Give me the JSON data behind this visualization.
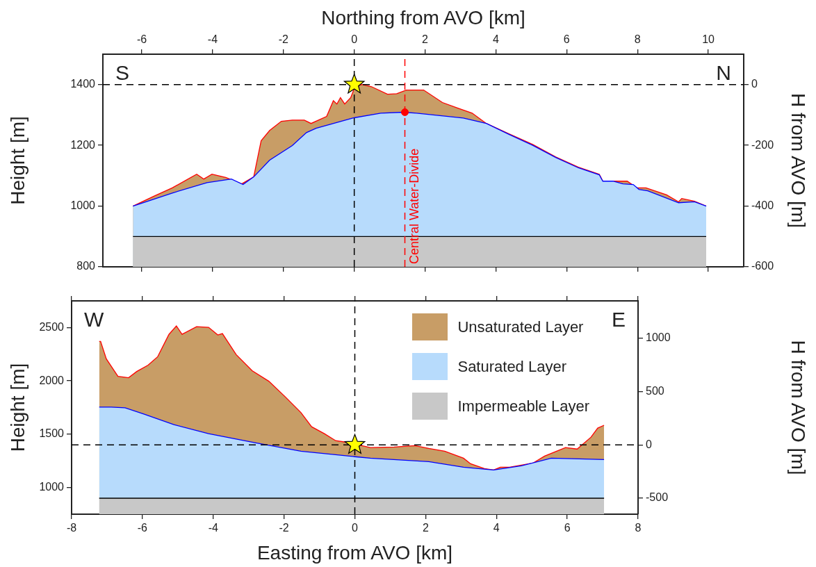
{
  "chart_data": [
    {
      "type": "area",
      "x2label": "Northing from AVO [km]",
      "ylabel": "Height [m]",
      "y2label": "H from AVO [m]",
      "xlim": [
        -7.1,
        11
      ],
      "xticks": [
        -6,
        -4,
        -2,
        0,
        2,
        4,
        6,
        8,
        10
      ],
      "x2lim": [
        -7.1,
        11
      ],
      "x2ticks": [
        -6,
        -4,
        -2,
        0,
        2,
        4,
        6,
        8,
        10
      ],
      "ylim": [
        800,
        1500
      ],
      "yticks": [
        800,
        1000,
        1200,
        1400
      ],
      "y2lim": [
        -600,
        100
      ],
      "y2ticks": [
        -600,
        -400,
        -200,
        0
      ],
      "tick_labels": "y",
      "legend": false,
      "annotations": [
        "S",
        "N"
      ],
      "ref_lines": [
        {
          "axis": "y",
          "value": 1400,
          "color": "#000000",
          "line_style": "dashed"
        },
        {
          "axis": "x",
          "value": 0,
          "color": "#000000",
          "line_style": "dashed"
        },
        {
          "axis": "x",
          "value": 1.43,
          "label": "Central Water-Divide",
          "color": "#ff0000",
          "line_style": "dashed"
        }
      ],
      "series": [
        {
          "color": "#c89d66",
          "x": [
            -6.25,
            -5.67,
            -5.14,
            -4.45,
            -4.25,
            -4.02,
            -3.63,
            -3.18,
            -2.84,
            -2.63,
            -2.39,
            -2.06,
            -1.75,
            -1.41,
            -1.22,
            -0.78,
            -0.59,
            -0.49,
            -0.39,
            -0.27,
            -0.1,
            0.02,
            0.22,
            0.49,
            0.94,
            1.2,
            1.47,
            1.96,
            2.49,
            2.94,
            3.33,
            3.73,
            4.37,
            5.04,
            5.69,
            6.33,
            6.92,
            7.02,
            7.31,
            7.59,
            7.71,
            7.98,
            8.24,
            8.82,
            9.16,
            9.25,
            9.61,
            9.94
          ],
          "values": [
            1000,
            1032,
            1060,
            1105,
            1089,
            1105,
            1094,
            1073,
            1096,
            1215,
            1249,
            1279,
            1283,
            1283,
            1272,
            1295,
            1347,
            1336,
            1357,
            1336,
            1357,
            1393,
            1400,
            1393,
            1368,
            1370,
            1382,
            1382,
            1341,
            1322,
            1306,
            1272,
            1238,
            1203,
            1162,
            1128,
            1105,
            1082,
            1082,
            1082,
            1082,
            1060,
            1060,
            1037,
            1014,
            1025,
            1016,
            1000
          ]
        },
        {
          "color": "#b7dbfc",
          "x": [
            -6.25,
            -5.14,
            -4.16,
            -3.47,
            -3.14,
            -2.84,
            -2.39,
            -1.75,
            -1.35,
            -1.08,
            -0.04,
            0.75,
            1.39,
            1.76,
            3.08,
            3.73,
            4.37,
            5.04,
            5.69,
            6.33,
            6.92,
            7.02,
            7.31,
            7.59,
            7.88,
            8.04,
            8.29,
            9.16,
            9.61,
            9.94
          ],
          "values": [
            1000,
            1043,
            1077,
            1089,
            1071,
            1096,
            1151,
            1199,
            1242,
            1256,
            1290,
            1306,
            1309,
            1306,
            1290,
            1272,
            1236,
            1200,
            1160,
            1126,
            1103,
            1082,
            1082,
            1073,
            1071,
            1055,
            1050,
            1011,
            1014,
            1000
          ]
        },
        {
          "color": "#c8c8c8",
          "x": [
            -6.25,
            9.94
          ],
          "values": [
            900,
            900
          ]
        },
        {
          "type": "scatter",
          "color": "#ffff00",
          "marker": "star",
          "x": [
            0
          ],
          "values": [
            1400
          ]
        },
        {
          "type": "scatter",
          "color": "#ff0000",
          "marker": "circle",
          "x": [
            1.43
          ],
          "values": [
            1309
          ]
        }
      ]
    },
    {
      "type": "area",
      "xlabel": "Easting from AVO [km]",
      "ylabel": "Height [m]",
      "y2label": "H from AVO [m]",
      "xlim": [
        -8,
        8
      ],
      "xticks": [
        -8,
        -6,
        -4,
        -2,
        0,
        2,
        4,
        6,
        8
      ],
      "ylim": [
        750,
        2750
      ],
      "yticks": [
        1000,
        1500,
        2000,
        2500
      ],
      "y2lim": [
        -650,
        1350
      ],
      "y2ticks": [
        -500,
        0,
        500,
        1000
      ],
      "legend": "top right",
      "annotations": [
        "W",
        "E"
      ],
      "ref_lines": [
        {
          "axis": "y",
          "value": 1400,
          "color": "#000000",
          "line_style": "dashed"
        },
        {
          "axis": "x",
          "value": 0,
          "color": "#000000",
          "line_style": "dashed"
        }
      ],
      "series": [
        {
          "name": "Unsaturated Layer",
          "color": "#c89d66",
          "x": [
            -7.22,
            -7.18,
            -7.02,
            -6.69,
            -6.39,
            -6.16,
            -5.84,
            -5.57,
            -5.25,
            -5.04,
            -4.88,
            -4.47,
            -4.13,
            -3.87,
            -3.74,
            -3.35,
            -2.9,
            -2.43,
            -1.97,
            -1.52,
            -1.22,
            -0.86,
            -0.54,
            -0.27,
            0,
            0.44,
            1.11,
            1.7,
            2.09,
            2.54,
            3.07,
            3.27,
            3.66,
            3.92,
            4.11,
            4.37,
            5.03,
            5.36,
            5.95,
            6.28,
            6.67,
            6.86,
            7.04
          ],
          "values": [
            2370,
            2370,
            2207,
            2043,
            2030,
            2088,
            2147,
            2226,
            2436,
            2515,
            2436,
            2508,
            2502,
            2430,
            2443,
            2246,
            2095,
            1997,
            1852,
            1702,
            1570,
            1505,
            1439,
            1426,
            1407,
            1374,
            1380,
            1393,
            1367,
            1341,
            1275,
            1223,
            1177,
            1164,
            1190,
            1190,
            1229,
            1295,
            1374,
            1361,
            1472,
            1557,
            1584
          ]
        },
        {
          "name": "Saturated Layer",
          "color": "#b7dbfc",
          "x": [
            -7.22,
            -6.88,
            -6.49,
            -5.96,
            -5.11,
            -4.13,
            -2.82,
            -1.52,
            0,
            0.44,
            2.09,
            3.07,
            3.92,
            4.7,
            5.55,
            6.33,
            7.04
          ],
          "values": [
            1754,
            1754,
            1748,
            1689,
            1590,
            1505,
            1420,
            1341,
            1289,
            1275,
            1243,
            1190,
            1164,
            1203,
            1275,
            1269,
            1262
          ]
        },
        {
          "name": "Impermeable Layer",
          "color": "#c8c8c8",
          "x": [
            -7.22,
            7.04
          ],
          "values": [
            900,
            900
          ]
        },
        {
          "type": "scatter",
          "color": "#ffff00",
          "marker": "star",
          "x": [
            0
          ],
          "values": [
            1400
          ]
        }
      ]
    }
  ]
}
